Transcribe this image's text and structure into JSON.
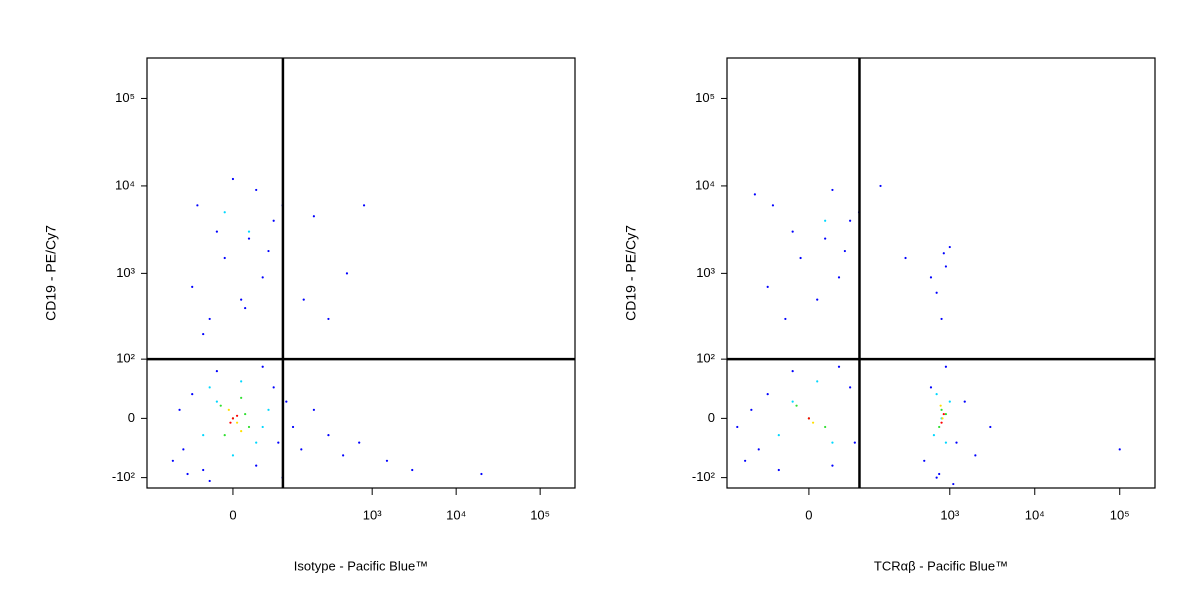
{
  "chart_data": [
    {
      "type": "scatter",
      "x_label": "Isotype - Pacific Blue™",
      "y_label": "CD19 - PE/Cy7",
      "xscale": "biexponential",
      "yscale": "biexponential",
      "xlim": [
        -230,
        260000
      ],
      "ylim": [
        -134,
        290000
      ],
      "xticks": [
        0,
        {
          "value": 1000,
          "label": "10³"
        },
        {
          "value": 10000,
          "label": "10⁴"
        },
        {
          "value": 100000,
          "label": "10⁵"
        }
      ],
      "yticks": [
        {
          "value": -100,
          "label": "-10²"
        },
        0,
        {
          "value": 100,
          "label": "10²"
        },
        {
          "value": 1000,
          "label": "10³"
        },
        {
          "value": 10000,
          "label": "10⁴"
        },
        {
          "value": 100000,
          "label": "10⁵"
        }
      ],
      "quadrant": {
        "x": 81,
        "y": 100
      },
      "series": [
        {
          "color": "#0000ff",
          "x": [
            -80,
            -60,
            -90,
            -40,
            30,
            60,
            70,
            90,
            -70,
            40,
            -20,
            110,
            140,
            200,
            300,
            450,
            700,
            1500,
            3000,
            20000,
            -110,
            80,
            -30,
            -30,
            10,
            40,
            -10,
            20,
            60,
            -50,
            30,
            0,
            -20,
            50,
            -60,
            15,
            80,
            -40,
            200,
            500,
            800,
            150,
            300
          ],
          "y": [
            -40,
            30,
            10,
            -80,
            -70,
            40,
            -30,
            20,
            -90,
            80,
            70,
            -10,
            -40,
            10,
            -20,
            -50,
            -30,
            -60,
            -80,
            -90,
            -60,
            -100,
            -110,
            300,
            500,
            900,
            1500,
            2500,
            4000,
            6000,
            9000,
            12000,
            3000,
            1800,
            700,
            400,
            6000,
            200,
            4500,
            1000,
            6000,
            500,
            300
          ]
        },
        {
          "color": "#00d8ff",
          "x": [
            -20,
            30,
            10,
            -40,
            50,
            0,
            20,
            -10,
            -30,
            40
          ],
          "y": [
            20,
            -30,
            50,
            -20,
            10,
            -50,
            3000,
            5000,
            40,
            -10
          ]
        },
        {
          "color": "#30e030",
          "x": [
            0,
            -15,
            20,
            10,
            -10,
            15
          ],
          "y": [
            0,
            15,
            -10,
            25,
            -20,
            5
          ]
        },
        {
          "color": "#ffe000",
          "x": [
            5,
            -5,
            10
          ],
          "y": [
            -5,
            10,
            -15
          ]
        },
        {
          "color": "#ff0000",
          "x": [
            0,
            -3,
            5
          ],
          "y": [
            0,
            -5,
            3
          ]
        }
      ]
    },
    {
      "type": "scatter",
      "x_label": "TCRαβ - Pacific Blue™",
      "y_label": "CD19 - PE/Cy7",
      "xscale": "biexponential",
      "yscale": "biexponential",
      "xlim": [
        -200,
        260000
      ],
      "ylim": [
        -134,
        290000
      ],
      "xticks": [
        0,
        {
          "value": 1000,
          "label": "10³"
        },
        {
          "value": 10000,
          "label": "10⁴"
        },
        {
          "value": 100000,
          "label": "10⁵"
        }
      ],
      "yticks": [
        {
          "value": -100,
          "label": "-10²"
        },
        0,
        {
          "value": 100,
          "label": "10²"
        },
        {
          "value": 1000,
          "label": "10³"
        },
        {
          "value": 10000,
          "label": "10⁴"
        },
        {
          "value": 100000,
          "label": "10⁵"
        }
      ],
      "quadrant": {
        "x": 81,
        "y": 100
      },
      "series": [
        {
          "color": "#0000ff",
          "x": [
            -80,
            -60,
            -100,
            -40,
            30,
            60,
            70,
            -120,
            40,
            -20,
            -150,
            -30,
            10,
            40,
            -10,
            20,
            60,
            -50,
            30,
            -20,
            50,
            -60,
            -90,
            80,
            150,
            300,
            500,
            600,
            700,
            900,
            1200,
            1500,
            2000,
            800,
            700,
            900,
            1000,
            600,
            850,
            3000,
            100000,
            1100,
            750
          ],
          "y": [
            -40,
            30,
            10,
            -80,
            -70,
            40,
            -30,
            -60,
            80,
            70,
            -10,
            300,
            500,
            900,
            1500,
            2500,
            4000,
            6000,
            9000,
            3000,
            1800,
            700,
            8000,
            5000,
            10000,
            1500,
            -60,
            40,
            -100,
            80,
            -30,
            20,
            -50,
            300,
            600,
            1200,
            2000,
            900,
            1700,
            -10,
            -40,
            -120,
            -90
          ]
        },
        {
          "color": "#00d8ff",
          "x": [
            -20,
            30,
            10,
            -40,
            20,
            800,
            700,
            900,
            1000,
            650
          ],
          "y": [
            20,
            -30,
            50,
            -20,
            4000,
            0,
            30,
            -30,
            20,
            -20
          ]
        },
        {
          "color": "#30e030",
          "x": [
            0,
            -15,
            20,
            800,
            750,
            900
          ],
          "y": [
            0,
            15,
            -10,
            10,
            -10,
            5
          ]
        },
        {
          "color": "#ffe000",
          "x": [
            5,
            820,
            780
          ],
          "y": [
            -5,
            0,
            15
          ]
        },
        {
          "color": "#ff0000",
          "x": [
            0,
            800,
            850
          ],
          "y": [
            0,
            -5,
            5
          ]
        }
      ]
    }
  ]
}
